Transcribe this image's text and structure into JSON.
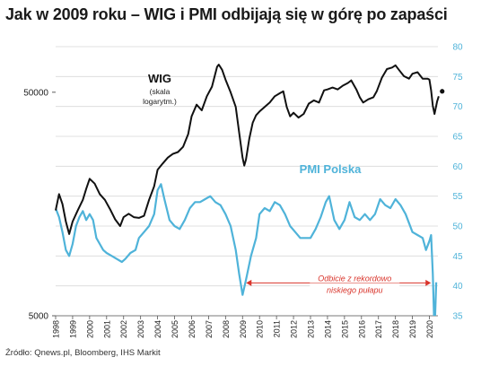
{
  "title": "Jak w 2009 roku – WIG i PMI odbijają się w górę po zapaści",
  "source": "Źródło: Qnews.pl, Bloomberg, IHS Markit",
  "colors": {
    "wig": "#111111",
    "pmi": "#4fb3d9",
    "annotation": "#d9342b",
    "grid": "#d9d9d9",
    "right_axis": "#4fb3d9"
  },
  "chart_data": {
    "type": "line",
    "x_ticks": [
      "1998",
      "1999",
      "2000",
      "2001",
      "2002",
      "2003",
      "2004",
      "2005",
      "2006",
      "2007",
      "2008",
      "2009",
      "2010",
      "2011",
      "2012",
      "2013",
      "2014",
      "2015",
      "2016",
      "2017",
      "2018",
      "2019",
      "2020"
    ],
    "x_range": [
      1998,
      2020.5
    ],
    "y_left": {
      "scale": "log",
      "range": [
        5000,
        80000
      ],
      "tick_labels": [
        "50000",
        "5000"
      ],
      "tick_values": [
        50000,
        5000
      ]
    },
    "y_right": {
      "scale": "linear",
      "range": [
        35,
        80
      ],
      "tick_values": [
        35,
        40,
        45,
        50,
        55,
        60,
        65,
        70,
        75,
        80
      ],
      "tick_labels": [
        "35",
        "40",
        "45",
        "50",
        "55",
        "60",
        "65",
        "70",
        "75",
        "80"
      ]
    },
    "grid": "horizontal",
    "series": [
      {
        "name": "WIG",
        "name_sub": "(skala logarytm.)",
        "axis": "left",
        "points": [
          [
            1998.0,
            14800
          ],
          [
            1998.2,
            17500
          ],
          [
            1998.4,
            15800
          ],
          [
            1998.6,
            13200
          ],
          [
            1998.8,
            11600
          ],
          [
            1999.0,
            13200
          ],
          [
            1999.3,
            14800
          ],
          [
            1999.6,
            16500
          ],
          [
            1999.8,
            18500
          ],
          [
            2000.0,
            20500
          ],
          [
            2000.3,
            19500
          ],
          [
            2000.6,
            17500
          ],
          [
            2000.9,
            16500
          ],
          [
            2001.2,
            15000
          ],
          [
            2001.5,
            13500
          ],
          [
            2001.8,
            12600
          ],
          [
            2002.0,
            13800
          ],
          [
            2002.3,
            14300
          ],
          [
            2002.6,
            13800
          ],
          [
            2002.9,
            13700
          ],
          [
            2003.2,
            14000
          ],
          [
            2003.5,
            16500
          ],
          [
            2003.8,
            19000
          ],
          [
            2004.0,
            22500
          ],
          [
            2004.3,
            24000
          ],
          [
            2004.6,
            25500
          ],
          [
            2004.9,
            26500
          ],
          [
            2005.2,
            27000
          ],
          [
            2005.5,
            28500
          ],
          [
            2005.8,
            32500
          ],
          [
            2006.0,
            39000
          ],
          [
            2006.3,
            44000
          ],
          [
            2006.6,
            41500
          ],
          [
            2006.9,
            48000
          ],
          [
            2007.2,
            53000
          ],
          [
            2007.5,
            65000
          ],
          [
            2007.6,
            66500
          ],
          [
            2007.8,
            63000
          ],
          [
            2008.0,
            57000
          ],
          [
            2008.3,
            50000
          ],
          [
            2008.6,
            43000
          ],
          [
            2008.8,
            33000
          ],
          [
            2009.0,
            25500
          ],
          [
            2009.1,
            23500
          ],
          [
            2009.2,
            25000
          ],
          [
            2009.4,
            31000
          ],
          [
            2009.6,
            36500
          ],
          [
            2009.8,
            39500
          ],
          [
            2010.0,
            41000
          ],
          [
            2010.3,
            43000
          ],
          [
            2010.6,
            45000
          ],
          [
            2010.9,
            48000
          ],
          [
            2011.2,
            49500
          ],
          [
            2011.4,
            50500
          ],
          [
            2011.6,
            43000
          ],
          [
            2011.8,
            39000
          ],
          [
            2012.0,
            40500
          ],
          [
            2012.3,
            38500
          ],
          [
            2012.6,
            40000
          ],
          [
            2012.9,
            44500
          ],
          [
            2013.2,
            46000
          ],
          [
            2013.5,
            45000
          ],
          [
            2013.8,
            51000
          ],
          [
            2014.0,
            51500
          ],
          [
            2014.3,
            52500
          ],
          [
            2014.6,
            51500
          ],
          [
            2014.9,
            53500
          ],
          [
            2015.2,
            55000
          ],
          [
            2015.4,
            56500
          ],
          [
            2015.7,
            51500
          ],
          [
            2015.9,
            47500
          ],
          [
            2016.1,
            45000
          ],
          [
            2016.4,
            46500
          ],
          [
            2016.7,
            47500
          ],
          [
            2016.9,
            50500
          ],
          [
            2017.2,
            58000
          ],
          [
            2017.5,
            63500
          ],
          [
            2017.8,
            64500
          ],
          [
            2018.0,
            66000
          ],
          [
            2018.2,
            63000
          ],
          [
            2018.5,
            59000
          ],
          [
            2018.8,
            57500
          ],
          [
            2019.0,
            60500
          ],
          [
            2019.3,
            61500
          ],
          [
            2019.6,
            57500
          ],
          [
            2019.9,
            57500
          ],
          [
            2020.0,
            57000
          ],
          [
            2020.1,
            51000
          ],
          [
            2020.2,
            43500
          ],
          [
            2020.3,
            40000
          ],
          [
            2020.45,
            45500
          ],
          [
            2020.55,
            48000
          ]
        ],
        "last_marker": [
          2020.75,
          50500
        ]
      },
      {
        "name": "PMI Polska",
        "axis": "right",
        "points": [
          [
            1998.0,
            53
          ],
          [
            1998.2,
            51.5
          ],
          [
            1998.4,
            49
          ],
          [
            1998.6,
            46
          ],
          [
            1998.8,
            45
          ],
          [
            1999.0,
            47
          ],
          [
            1999.2,
            50
          ],
          [
            1999.4,
            51.5
          ],
          [
            1999.6,
            52.5
          ],
          [
            1999.8,
            51
          ],
          [
            2000.0,
            52
          ],
          [
            2000.2,
            51
          ],
          [
            2000.4,
            48
          ],
          [
            2000.6,
            47
          ],
          [
            2000.8,
            46
          ],
          [
            2001.0,
            45.5
          ],
          [
            2001.3,
            45
          ],
          [
            2001.6,
            44.5
          ],
          [
            2001.9,
            44
          ],
          [
            2002.1,
            44.5
          ],
          [
            2002.4,
            45.5
          ],
          [
            2002.7,
            46
          ],
          [
            2002.9,
            48
          ],
          [
            2003.2,
            49
          ],
          [
            2003.5,
            50
          ],
          [
            2003.8,
            52
          ],
          [
            2004.0,
            56
          ],
          [
            2004.2,
            57
          ],
          [
            2004.4,
            54.5
          ],
          [
            2004.7,
            51
          ],
          [
            2005.0,
            50
          ],
          [
            2005.3,
            49.5
          ],
          [
            2005.6,
            51
          ],
          [
            2005.9,
            53
          ],
          [
            2006.2,
            54
          ],
          [
            2006.5,
            54
          ],
          [
            2006.8,
            54.5
          ],
          [
            2007.1,
            55
          ],
          [
            2007.4,
            54
          ],
          [
            2007.7,
            53.5
          ],
          [
            2008.0,
            52
          ],
          [
            2008.3,
            50
          ],
          [
            2008.6,
            46
          ],
          [
            2008.8,
            42
          ],
          [
            2009.0,
            38.5
          ],
          [
            2009.2,
            41
          ],
          [
            2009.5,
            45
          ],
          [
            2009.8,
            48
          ],
          [
            2010.0,
            52
          ],
          [
            2010.3,
            53
          ],
          [
            2010.6,
            52.5
          ],
          [
            2010.9,
            54
          ],
          [
            2011.2,
            53.5
          ],
          [
            2011.5,
            52
          ],
          [
            2011.8,
            50
          ],
          [
            2012.1,
            49
          ],
          [
            2012.4,
            48
          ],
          [
            2012.7,
            48
          ],
          [
            2013.0,
            48
          ],
          [
            2013.3,
            49.5
          ],
          [
            2013.6,
            51.5
          ],
          [
            2013.9,
            54
          ],
          [
            2014.1,
            55
          ],
          [
            2014.4,
            51
          ],
          [
            2014.7,
            49.5
          ],
          [
            2015.0,
            51
          ],
          [
            2015.3,
            54
          ],
          [
            2015.6,
            51.5
          ],
          [
            2015.9,
            51
          ],
          [
            2016.2,
            52
          ],
          [
            2016.5,
            51
          ],
          [
            2016.8,
            52
          ],
          [
            2017.1,
            54.5
          ],
          [
            2017.4,
            53.5
          ],
          [
            2017.7,
            53
          ],
          [
            2018.0,
            54.5
          ],
          [
            2018.3,
            53.5
          ],
          [
            2018.6,
            52
          ],
          [
            2018.8,
            50.5
          ],
          [
            2019.0,
            49
          ],
          [
            2019.3,
            48.5
          ],
          [
            2019.6,
            48
          ],
          [
            2019.8,
            46
          ],
          [
            2020.0,
            47.5
          ],
          [
            2020.1,
            48.5
          ],
          [
            2020.2,
            42
          ],
          [
            2020.3,
            31.9
          ],
          [
            2020.4,
            40.6
          ]
        ]
      }
    ],
    "annotations": [
      {
        "text_lines": [
          "Odbicie z rekordowo",
          "niskiego pułapu"
        ],
        "arrow_x": [
          2009.0,
          2020.3
        ],
        "arrow_y_right": 40.5
      }
    ]
  }
}
